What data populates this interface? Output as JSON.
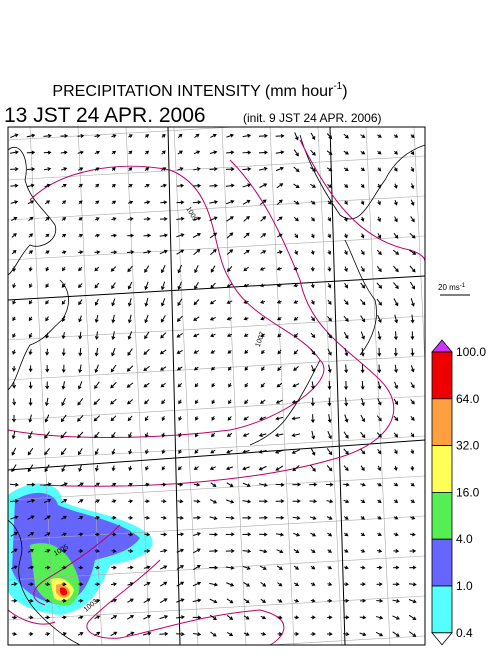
{
  "title": {
    "text": "PRECIPITATION INTENSITY (mm hour",
    "superscript": "-1",
    "suffix": ")"
  },
  "valid_time": "13 JST 24 APR. 2006",
  "init_time": "(init. 9 JST 24 APR. 2006)",
  "wind_scale": {
    "text": "20 ms",
    "superscript": "-1"
  },
  "colorbar": {
    "over_color": "#cc33ff",
    "under_color": "#ffffff",
    "bins": [
      {
        "color": "#ee0000"
      },
      {
        "color": "#ffa040"
      },
      {
        "color": "#ffff55"
      },
      {
        "color": "#55ee55"
      },
      {
        "color": "#6666ff"
      },
      {
        "color": "#55ffff"
      }
    ],
    "labels": [
      "100.0",
      "64.0",
      "32.0",
      "16.0",
      "4.0",
      "1.0",
      "0.4"
    ]
  },
  "contour_labels": [
    "1009",
    "1007",
    "1005",
    "1003"
  ]
}
